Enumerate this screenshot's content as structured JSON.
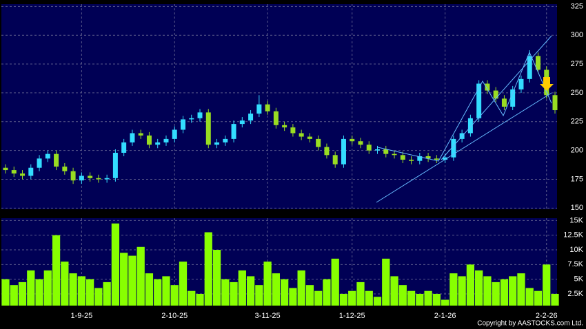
{
  "chart_data": [
    {
      "type": "candlestick",
      "up_color": "#33ddff",
      "down_color": "#99dd22",
      "open": [
        185,
        183,
        180,
        178,
        185,
        193,
        197,
        186,
        182,
        174,
        178,
        176,
        175,
        176,
        198,
        207,
        215,
        213,
        205,
        207,
        210,
        218,
        227,
        228,
        233,
        205,
        207,
        210,
        223,
        226,
        232,
        240,
        234,
        222,
        220,
        215,
        212,
        210,
        203,
        196,
        188,
        210,
        208,
        205,
        200,
        201,
        197,
        196,
        192,
        191,
        195,
        193,
        192,
        194,
        210,
        215,
        228,
        258,
        252,
        245,
        238,
        253,
        262,
        282,
        270,
        248
      ],
      "high": [
        188,
        186,
        183,
        188,
        196,
        200,
        200,
        189,
        185,
        181,
        181,
        179,
        179,
        201,
        210,
        218,
        218,
        216,
        210,
        213,
        221,
        230,
        231,
        236,
        236,
        210,
        213,
        226,
        229,
        235,
        248,
        243,
        237,
        225,
        223,
        218,
        215,
        213,
        206,
        199,
        213,
        213,
        211,
        208,
        204,
        204,
        200,
        199,
        195,
        198,
        198,
        196,
        197,
        213,
        218,
        231,
        261,
        261,
        255,
        248,
        256,
        265,
        287,
        285,
        273,
        251
      ],
      "low": [
        180,
        177,
        175,
        175,
        182,
        190,
        183,
        179,
        171,
        171,
        173,
        172,
        172,
        173,
        195,
        204,
        210,
        202,
        202,
        204,
        207,
        215,
        224,
        225,
        202,
        202,
        204,
        207,
        220,
        223,
        229,
        231,
        219,
        217,
        212,
        209,
        207,
        200,
        193,
        185,
        185,
        205,
        202,
        197,
        197,
        194,
        193,
        189,
        188,
        188,
        190,
        189,
        189,
        191,
        207,
        212,
        225,
        249,
        242,
        235,
        235,
        250,
        259,
        267,
        245,
        232
      ],
      "close": [
        183,
        180,
        178,
        185,
        193,
        197,
        186,
        182,
        174,
        178,
        176,
        175,
        176,
        198,
        207,
        215,
        213,
        205,
        207,
        210,
        218,
        227,
        228,
        233,
        205,
        207,
        210,
        223,
        226,
        232,
        240,
        234,
        222,
        220,
        215,
        212,
        210,
        203,
        196,
        188,
        210,
        208,
        205,
        200,
        201,
        197,
        196,
        192,
        191,
        195,
        193,
        192,
        194,
        210,
        215,
        228,
        258,
        252,
        245,
        238,
        253,
        262,
        282,
        270,
        248,
        235
      ],
      "ylim": [
        149,
        327
      ],
      "yticks": [
        150,
        175,
        200,
        225,
        250,
        275,
        300,
        325
      ],
      "grid": true
    },
    {
      "type": "bar",
      "color": "#88ff00",
      "categories": [
        null,
        null,
        null,
        null,
        null,
        null,
        null,
        null,
        null,
        "1-9-25",
        null,
        null,
        null,
        null,
        null,
        null,
        null,
        null,
        null,
        null,
        "2-10-25",
        null,
        null,
        null,
        null,
        null,
        null,
        null,
        null,
        null,
        null,
        "3-11-25",
        null,
        null,
        null,
        null,
        null,
        null,
        null,
        null,
        null,
        "1-12-25",
        null,
        null,
        null,
        null,
        null,
        null,
        null,
        null,
        null,
        null,
        "2-1-26",
        null,
        null,
        null,
        null,
        null,
        null,
        null,
        null,
        null,
        null,
        null,
        "2-2-26",
        null
      ],
      "values": [
        5000,
        4000,
        4500,
        6500,
        5000,
        6500,
        12500,
        8000,
        6000,
        5500,
        5000,
        3500,
        4500,
        14500,
        9500,
        9000,
        10500,
        6000,
        5000,
        5500,
        4000,
        8000,
        3000,
        2500,
        13000,
        10000,
        5000,
        4500,
        6500,
        5500,
        4000,
        8000,
        6000,
        5000,
        3500,
        6500,
        4000,
        3000,
        5000,
        8500,
        2500,
        3000,
        4500,
        3000,
        2000,
        8500,
        5500,
        4000,
        3000,
        2500,
        3000,
        2500,
        1500,
        6000,
        5500,
        7500,
        6500,
        5500,
        4500,
        5000,
        5500,
        6000,
        3500,
        3000,
        7500,
        2500
      ],
      "ylim": [
        500,
        15400
      ],
      "yticks": [
        {
          "value": 2500,
          "label": "2.5K"
        },
        {
          "value": 5000,
          "label": "5K"
        },
        {
          "value": 7500,
          "label": "7.5K"
        },
        {
          "value": 10000,
          "label": "10K"
        },
        {
          "value": 12500,
          "label": "12.5K"
        },
        {
          "value": 15000,
          "label": "15K"
        }
      ],
      "grid": true,
      "annotation": "Copyright by AASTOCKS.com Ltd."
    }
  ]
}
